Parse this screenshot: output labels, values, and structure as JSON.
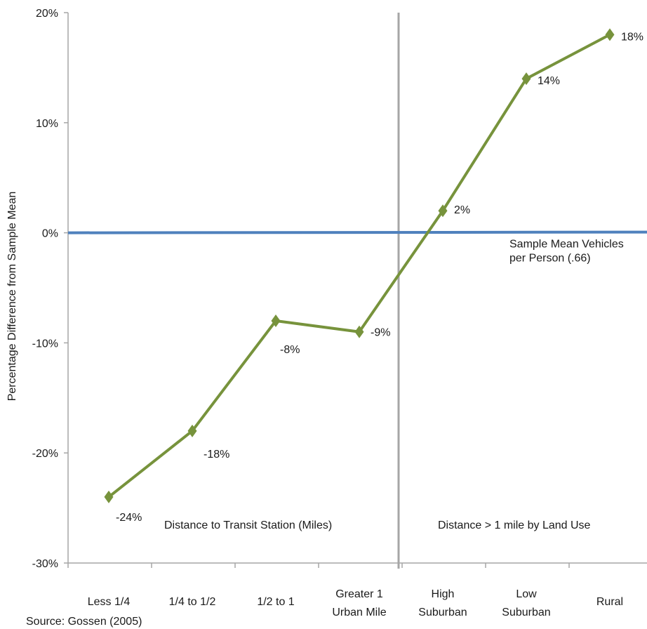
{
  "chart_data": {
    "type": "line",
    "title": "",
    "ylabel": "Percentage Difference from Sample Mean",
    "xlabel": "",
    "ylim": [
      -30,
      20
    ],
    "y_ticks": [
      "20%",
      "10%",
      "0%",
      "-10%",
      "-20%",
      "-30%"
    ],
    "y_tick_values": [
      20,
      10,
      0,
      -10,
      -20,
      -30
    ],
    "categories": [
      [
        "Less 1/4"
      ],
      [
        "1/4 to 1/2"
      ],
      [
        "1/2 to 1"
      ],
      [
        "Greater 1",
        "Urban Mile"
      ],
      [
        "High",
        "Suburban"
      ],
      [
        "Low",
        "Suburban"
      ],
      [
        "Rural"
      ]
    ],
    "series": [
      {
        "values": [
          -24,
          -18,
          -8,
          -9,
          2,
          14,
          18
        ],
        "labels": [
          "-24%",
          "-18%",
          "-8%",
          "-9%",
          "2%",
          "14%",
          "18%"
        ],
        "color": "#77933c",
        "marker": "diamond"
      }
    ],
    "reference_line": {
      "value": 0,
      "color": "#4f81bd",
      "label_lines": [
        "Sample Mean Vehicles",
        "per Person (.66)"
      ]
    },
    "divider_after_category_index": 3,
    "divider_color": "#a6a6a6",
    "section_labels": [
      "Distance to Transit Station (Miles)",
      "Distance > 1 mile by Land Use"
    ],
    "source": "Source:  Gossen (2005)",
    "grid": false
  }
}
